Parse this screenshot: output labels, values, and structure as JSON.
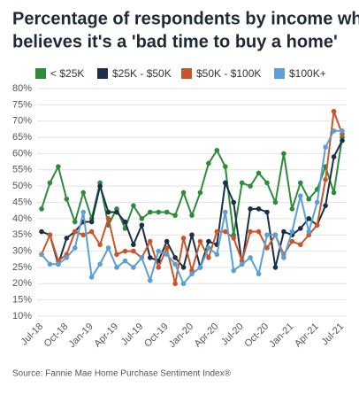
{
  "chart_data": {
    "type": "line",
    "title": [
      "Percentage of respondents by income who",
      "believes it's a 'bad time to buy a home'"
    ],
    "source": "Source: Fannie Mae Home Purchase Sentiment Index®",
    "categories": [
      "Jul-18",
      null,
      null,
      "Oct-18",
      null,
      null,
      "Jan-19",
      null,
      null,
      "Apr-19",
      null,
      null,
      "Jul-19",
      null,
      null,
      "Oct-19",
      null,
      null,
      "Jan-20",
      null,
      null,
      "Apr-20",
      null,
      null,
      "Jul-20",
      null,
      null,
      "Oct-20",
      null,
      null,
      "Jan-21",
      null,
      null,
      "Apr-21",
      null,
      null,
      "Jul-21"
    ],
    "ylim": [
      10,
      80
    ],
    "yticks": [
      {
        "value": 10,
        "label": "10%"
      },
      {
        "value": 15,
        "label": "15%"
      },
      {
        "value": 20,
        "label": "20%"
      },
      {
        "value": 25,
        "label": "25%"
      },
      {
        "value": 30,
        "label": "30%"
      },
      {
        "value": 35,
        "label": "35%"
      },
      {
        "value": 40,
        "label": "40%"
      },
      {
        "value": 45,
        "label": "45%"
      },
      {
        "value": 50,
        "label": "50%"
      },
      {
        "value": 55,
        "label": "55%"
      },
      {
        "value": 60,
        "label": "60%"
      },
      {
        "value": 65,
        "label": "65%"
      },
      {
        "value": 70,
        "label": "70%"
      },
      {
        "value": 75,
        "label": "75%"
      },
      {
        "value": 80,
        "label": "80%"
      }
    ],
    "grid": true,
    "legend": "top",
    "series": [
      {
        "name": "< $25K",
        "color": "#2e8b3a",
        "values": [
          43,
          51,
          56,
          46,
          39,
          48,
          40,
          51,
          38,
          43,
          37,
          44,
          40,
          42,
          42,
          42,
          41,
          48,
          41,
          48,
          57,
          61,
          56,
          35,
          51,
          50,
          54,
          51,
          45,
          60,
          43,
          51,
          46,
          49,
          56,
          48,
          65
        ]
      },
      {
        "name": "$25K - $50K",
        "color": "#1b2f4a",
        "values": [
          36,
          35,
          26,
          34,
          36,
          39,
          39,
          50,
          42,
          42,
          39,
          32,
          38,
          28,
          27,
          33,
          28,
          25,
          35,
          25,
          33,
          32,
          51,
          45,
          26,
          43,
          43,
          42,
          25,
          36,
          35,
          37,
          40,
          38,
          44,
          59,
          64
        ]
      },
      {
        "name": "$50K - $100K",
        "color": "#c8562a",
        "values": [
          29,
          35,
          27,
          29,
          36,
          35,
          36,
          32,
          40,
          29,
          30,
          30,
          28,
          33,
          25,
          31,
          20,
          34,
          24,
          33,
          28,
          36,
          36,
          34,
          27,
          36,
          36,
          31,
          35,
          29,
          33,
          32,
          35,
          38,
          52,
          73,
          66
        ]
      },
      {
        "name": "$100K+",
        "color": "#5aa0d6",
        "values": [
          29,
          26,
          26,
          28,
          31,
          42,
          22,
          26,
          31,
          25,
          27,
          25,
          28,
          21,
          30,
          29,
          26,
          20,
          23,
          25,
          31,
          29,
          42,
          24,
          26,
          28,
          23,
          35,
          35,
          28,
          36,
          47,
          36,
          45,
          62,
          67,
          67
        ]
      }
    ]
  }
}
